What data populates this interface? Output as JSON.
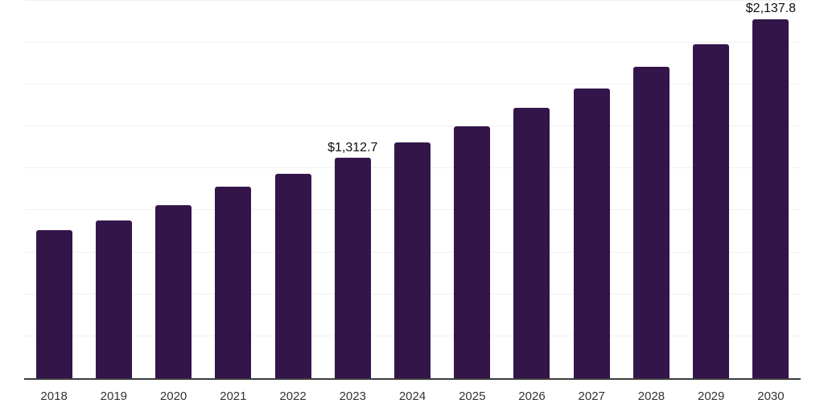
{
  "chart_data": {
    "type": "bar",
    "title": "",
    "xlabel": "",
    "ylabel": "",
    "categories": [
      "2018",
      "2019",
      "2020",
      "2021",
      "2022",
      "2023",
      "2024",
      "2025",
      "2026",
      "2027",
      "2028",
      "2029",
      "2030"
    ],
    "values": [
      882,
      940,
      1030,
      1140,
      1220,
      1312.7,
      1405,
      1500,
      1610,
      1725,
      1855,
      1990,
      2137.8
    ],
    "data_labels": [
      "",
      "",
      "",
      "",
      "",
      "$1,312.7",
      "",
      "",
      "",
      "",
      "",
      "",
      "$2,137.8"
    ],
    "ylim": [
      0,
      2250
    ],
    "gridline_step": 250,
    "grid": "horizontal",
    "legend": "none",
    "colors": {
      "bar": "#33154a",
      "gridline": "#f0f0f0",
      "axis_line": "#3d3d3d",
      "data_label": "#0f0f0f",
      "tick_label": "#333333",
      "background": "#ffffff"
    }
  }
}
